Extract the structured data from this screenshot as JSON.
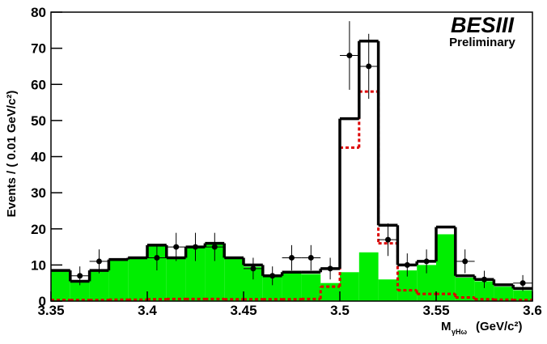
{
  "chart_data": {
    "type": "histogram",
    "brand": "BESIII",
    "subtitle": "Preliminary",
    "y_label": "Events / ( 0.01 GeV/c²)",
    "x_label": "M",
    "x_label_sub": "γHω",
    "x_label_unit": "(GeV/c²)",
    "bins": [
      3.35,
      3.36,
      3.37,
      3.38,
      3.39,
      3.4,
      3.41,
      3.42,
      3.43,
      3.44,
      3.45,
      3.46,
      3.47,
      3.48,
      3.49,
      3.5,
      3.51,
      3.52,
      3.53,
      3.54,
      3.55,
      3.56,
      3.57,
      3.58,
      3.59,
      3.6
    ],
    "series": [
      {
        "style": "fill",
        "color": "#00ee00",
        "values": [
          8.5,
          5.5,
          8.5,
          11.5,
          12,
          15.5,
          12,
          15,
          16,
          12,
          9.5,
          7,
          8,
          7.5,
          5,
          8,
          13.5,
          6,
          8.5,
          10,
          18.5,
          6.5,
          5.5,
          4,
          3
        ]
      },
      {
        "style": "dashed",
        "color": "#dd0000",
        "values": [
          0.3,
          0.3,
          0.3,
          0.4,
          0.4,
          0.5,
          0.6,
          0.6,
          0.6,
          0.5,
          0.5,
          0.5,
          0.5,
          0.6,
          4,
          42.5,
          58,
          16,
          3,
          2,
          2,
          1,
          0.5,
          0.4,
          0.3
        ]
      },
      {
        "style": "line",
        "color": "#000000",
        "values": [
          8.5,
          5.5,
          8.5,
          11.5,
          12,
          15.5,
          12,
          15,
          16,
          12,
          10,
          7,
          8,
          8,
          9,
          50.5,
          72,
          21,
          10,
          11,
          20.5,
          7,
          6,
          4.5,
          3.5
        ]
      }
    ],
    "points": {
      "color": "#000000",
      "x": [
        3.365,
        3.375,
        3.405,
        3.415,
        3.425,
        3.435,
        3.455,
        3.465,
        3.475,
        3.485,
        3.495,
        3.505,
        3.515,
        3.525,
        3.535,
        3.545,
        3.565,
        3.575,
        3.595
      ],
      "values": [
        7,
        11,
        12,
        15,
        15,
        15,
        9,
        7,
        12,
        12,
        9,
        68,
        65,
        17,
        10,
        11,
        11,
        6,
        5
      ],
      "errors": [
        2.6,
        3.3,
        3.5,
        3.9,
        3.9,
        3.9,
        3,
        2.6,
        3.5,
        3.5,
        3,
        9.5,
        9,
        4.5,
        3.2,
        3.3,
        3.3,
        2.4,
        2.2
      ]
    },
    "xlim": [
      3.35,
      3.6
    ],
    "xticks": [
      3.35,
      3.4,
      3.45,
      3.5,
      3.55,
      3.6
    ],
    "ylim": [
      0,
      80
    ],
    "yticks": [
      0,
      10,
      20,
      30,
      40,
      50,
      60,
      70,
      80
    ]
  }
}
